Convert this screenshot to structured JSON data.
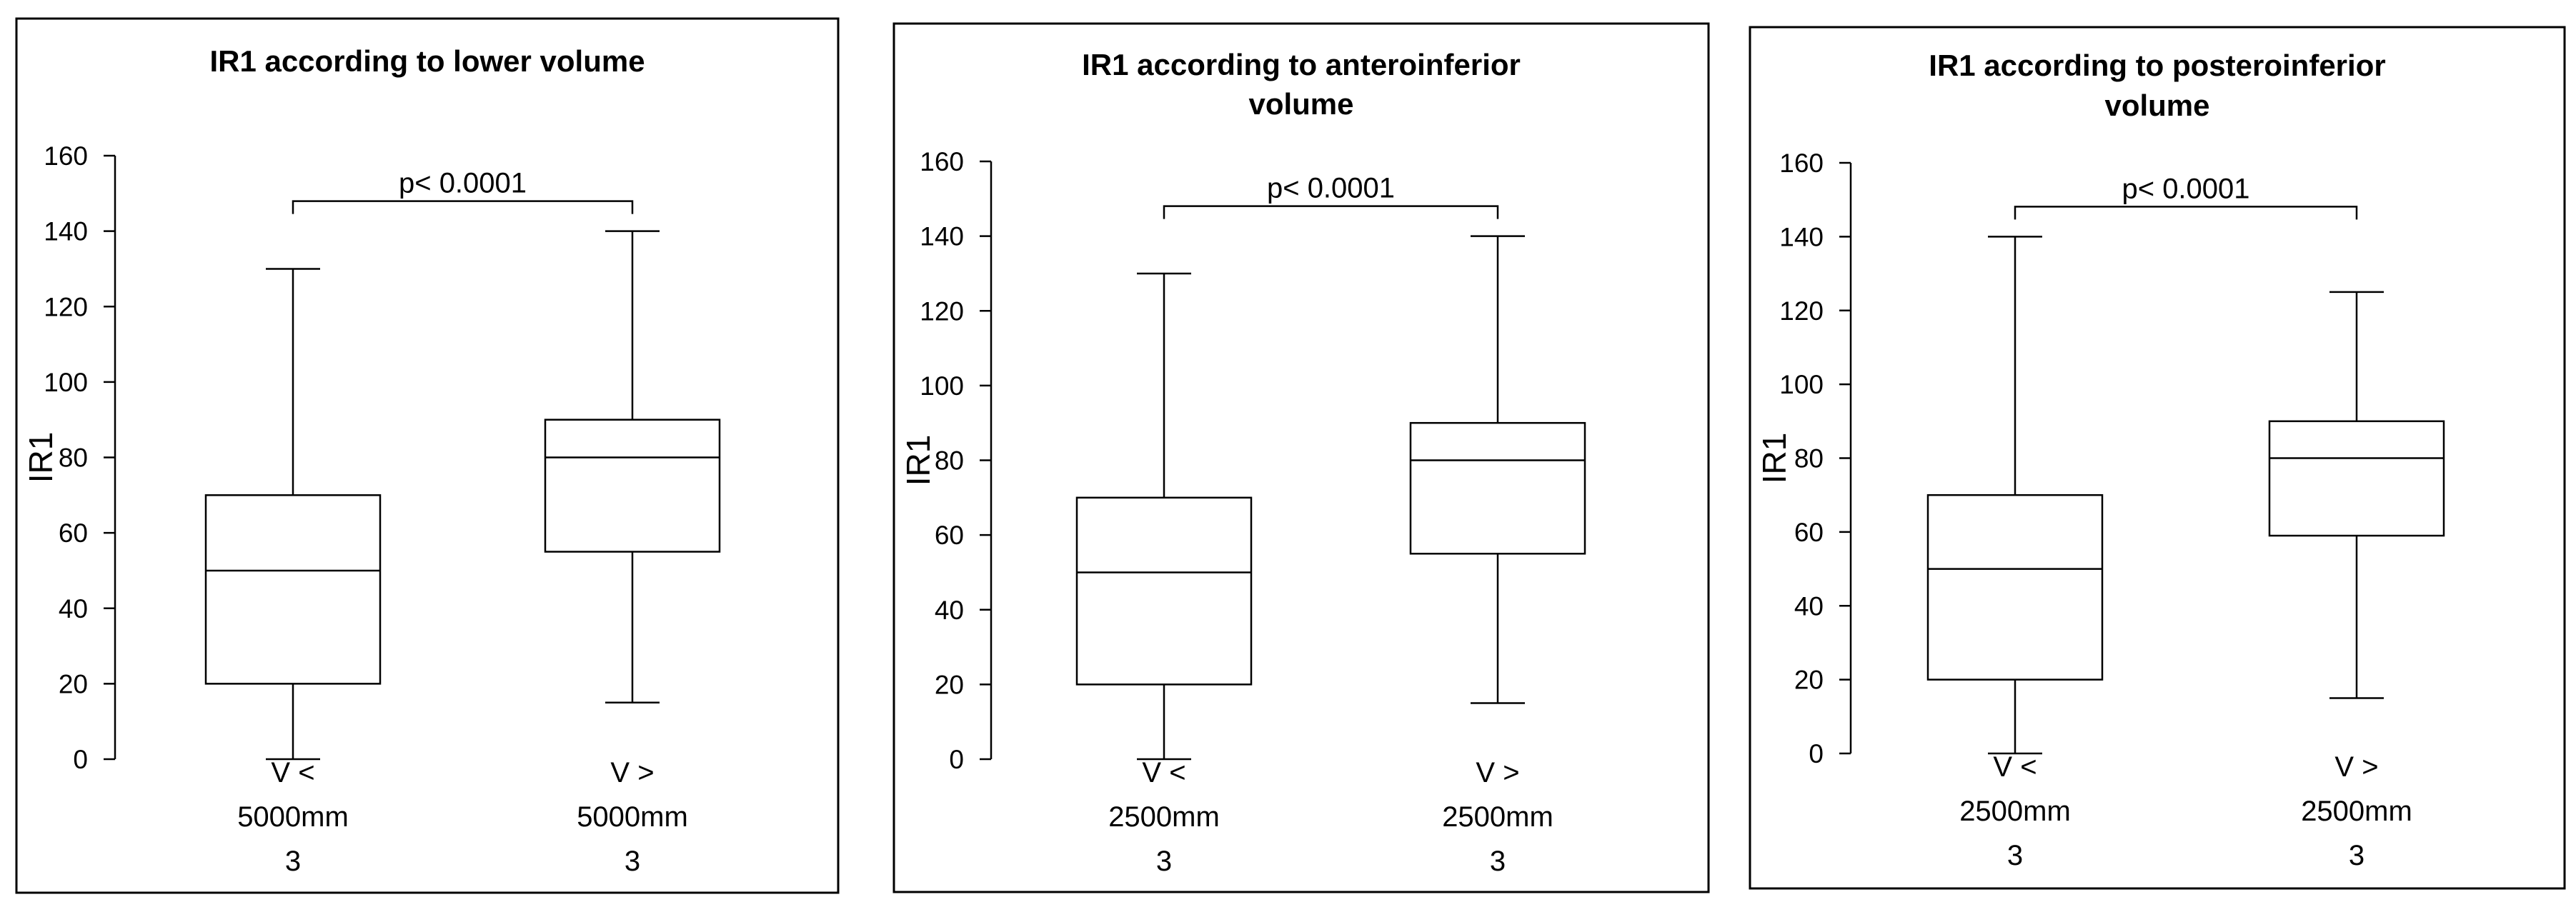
{
  "chart_data": [
    {
      "type": "box",
      "title_lines": [
        "IR1 according to lower volume"
      ],
      "ylabel": "IR1",
      "ylim": [
        0,
        160
      ],
      "yticks": [
        0,
        20,
        40,
        60,
        80,
        100,
        120,
        140,
        160
      ],
      "annotation": "p< 0.0001",
      "categories": [
        {
          "label_lines": [
            "V <",
            "5000mm",
            "3"
          ],
          "min": 0,
          "q1": 20,
          "median": 50,
          "q3": 70,
          "max": 130
        },
        {
          "label_lines": [
            "V >",
            "5000mm",
            "3"
          ],
          "min": 15,
          "q1": 55,
          "median": 80,
          "q3": 90,
          "max": 140
        }
      ]
    },
    {
      "type": "box",
      "title_lines": [
        "IR1 according to anteroinferior",
        "volume"
      ],
      "ylabel": "IR1",
      "ylim": [
        0,
        160
      ],
      "yticks": [
        0,
        20,
        40,
        60,
        80,
        100,
        120,
        140,
        160
      ],
      "annotation": "p< 0.0001",
      "categories": [
        {
          "label_lines": [
            "V <",
            "2500mm",
            "3"
          ],
          "min": 0,
          "q1": 20,
          "median": 50,
          "q3": 70,
          "max": 130
        },
        {
          "label_lines": [
            "V >",
            "2500mm",
            "3"
          ],
          "min": 15,
          "q1": 55,
          "median": 80,
          "q3": 90,
          "max": 140
        }
      ]
    },
    {
      "type": "box",
      "title_lines": [
        "IR1 according to posteroinferior",
        "volume"
      ],
      "ylabel": "IR1",
      "ylim": [
        0,
        160
      ],
      "yticks": [
        0,
        20,
        40,
        60,
        80,
        100,
        120,
        140,
        160
      ],
      "annotation": "p< 0.0001",
      "categories": [
        {
          "label_lines": [
            "V <",
            "2500mm",
            "3"
          ],
          "min": 0,
          "q1": 20,
          "median": 50,
          "q3": 70,
          "max": 140
        },
        {
          "label_lines": [
            "V >",
            "2500mm",
            "3"
          ],
          "min": 15,
          "q1": 59,
          "median": 80,
          "q3": 90,
          "max": 125
        }
      ]
    }
  ]
}
